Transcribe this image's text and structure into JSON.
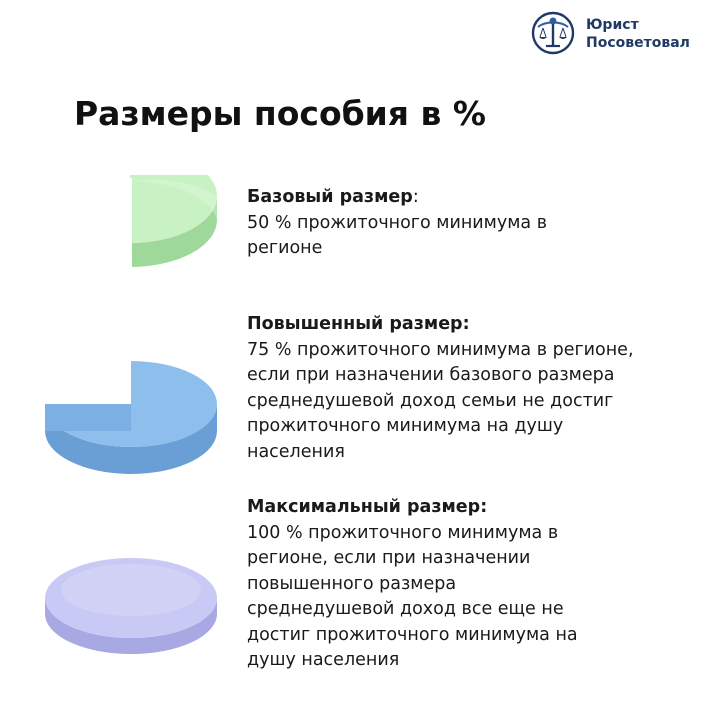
{
  "logo": {
    "line1": "Юрист",
    "line2": "Посоветовал",
    "color": "#1f3a64",
    "icon": "scales-of-justice-icon"
  },
  "title": "Размеры пособия в %",
  "items": [
    {
      "heading": "Базовый размер",
      "heading_suffix": ":",
      "text": "50 % прожиточного минимума  в\nрегионе",
      "percent": 50,
      "color": "#c8f2c4"
    },
    {
      "heading": "Повышенный размер:",
      "heading_suffix": "",
      "text": "75 % прожиточного минимума  в регионе,\nесли при назначении базового размера\nсреднедушевой доход семьи не достиг\nпрожиточного минимума  на душу\nнаселения",
      "percent": 75,
      "color": "#8ebfec"
    },
    {
      "heading": "Максимальный размер:",
      "heading_suffix": "",
      "text": "100 % прожиточного минимума  в\nрегионе, если при назначении\nповышенного размера\nсреднедушевой доход все еще не\nдостиг прожиточного минимума  на\nдушу населения",
      "percent": 100,
      "color": "#c9c9f5"
    }
  ]
}
